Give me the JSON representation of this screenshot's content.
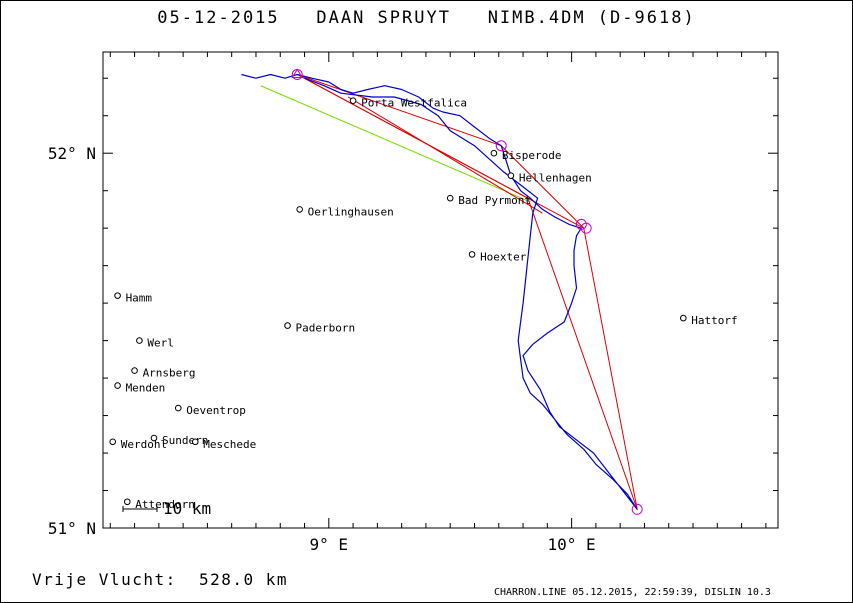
{
  "title": {
    "date": "05-12-2015",
    "pilot": "DAAN SPRUYT",
    "glider": "NIMB.4DM (D-9618)"
  },
  "axes": {
    "lon_ticks": [
      {
        "lon": 9.0,
        "label": "9° E"
      },
      {
        "lon": 10.0,
        "label": "10° E"
      }
    ],
    "lat_ticks": [
      {
        "lat": 52.0,
        "label": "52° N"
      },
      {
        "lat": 51.0,
        "label": "51° N"
      }
    ],
    "lon_range": [
      8.07,
      10.85
    ],
    "lat_range": [
      51.0,
      52.27
    ]
  },
  "scale_bar": {
    "label": "10 km"
  },
  "places": [
    {
      "name": "Porta Westfalica",
      "lon": 9.1,
      "lat": 52.14
    },
    {
      "name": "Bisperode",
      "lon": 9.68,
      "lat": 52.0
    },
    {
      "name": "Hellenhagen",
      "lon": 9.75,
      "lat": 51.94
    },
    {
      "name": "Bad Pyrmont",
      "lon": 9.5,
      "lat": 51.88
    },
    {
      "name": "Oerlinghausen",
      "lon": 8.88,
      "lat": 51.85
    },
    {
      "name": "Hoexter",
      "lon": 9.59,
      "lat": 51.73
    },
    {
      "name": "Hamm",
      "lon": 8.13,
      "lat": 51.62
    },
    {
      "name": "Hattorf",
      "lon": 10.46,
      "lat": 51.56
    },
    {
      "name": "Paderborn",
      "lon": 8.83,
      "lat": 51.54
    },
    {
      "name": "Werl",
      "lon": 8.22,
      "lat": 51.5
    },
    {
      "name": "Arnsberg",
      "lon": 8.2,
      "lat": 51.42
    },
    {
      "name": "Menden",
      "lon": 8.13,
      "lat": 51.38
    },
    {
      "name": "Oeventrop",
      "lon": 8.38,
      "lat": 51.32
    },
    {
      "name": "Werdohl",
      "lon": 8.11,
      "lat": 51.23
    },
    {
      "name": "Sundern",
      "lon": 8.28,
      "lat": 51.24
    },
    {
      "name": "Meschede",
      "lon": 8.45,
      "lat": 51.23
    },
    {
      "name": "Attendorn",
      "lon": 8.17,
      "lat": 51.07
    }
  ],
  "turnpoints": [
    {
      "lon": 8.87,
      "lat": 52.21
    },
    {
      "lon": 9.71,
      "lat": 52.02
    },
    {
      "lon": 10.04,
      "lat": 51.81
    },
    {
      "lon": 10.06,
      "lat": 51.8
    },
    {
      "lon": 10.27,
      "lat": 51.05
    }
  ],
  "track": [
    [
      8.64,
      52.21
    ],
    [
      8.7,
      52.2
    ],
    [
      8.76,
      52.21
    ],
    [
      8.82,
      52.2
    ],
    [
      8.87,
      52.21
    ],
    [
      8.93,
      52.2
    ],
    [
      9.0,
      52.19
    ],
    [
      9.05,
      52.17
    ],
    [
      9.1,
      52.16
    ],
    [
      9.16,
      52.17
    ],
    [
      9.23,
      52.18
    ],
    [
      9.3,
      52.17
    ],
    [
      9.37,
      52.15
    ],
    [
      9.43,
      52.12
    ],
    [
      9.47,
      52.11
    ],
    [
      9.54,
      52.1
    ],
    [
      9.6,
      52.07
    ],
    [
      9.66,
      52.04
    ],
    [
      9.71,
      52.02
    ],
    [
      9.73,
      51.98
    ],
    [
      9.75,
      51.94
    ],
    [
      9.79,
      51.9
    ],
    [
      9.83,
      51.88
    ],
    [
      9.88,
      51.85
    ],
    [
      9.93,
      51.83
    ],
    [
      9.99,
      51.81
    ],
    [
      10.04,
      51.8
    ],
    [
      10.02,
      51.78
    ],
    [
      10.01,
      51.74
    ],
    [
      10.01,
      51.7
    ],
    [
      10.02,
      51.64
    ],
    [
      10.0,
      51.6
    ],
    [
      9.97,
      51.55
    ],
    [
      9.9,
      51.52
    ],
    [
      9.84,
      51.49
    ],
    [
      9.8,
      51.46
    ],
    [
      9.82,
      51.42
    ],
    [
      9.87,
      51.37
    ],
    [
      9.91,
      51.31
    ],
    [
      9.95,
      51.27
    ],
    [
      10.03,
      51.23
    ],
    [
      10.09,
      51.2
    ],
    [
      10.15,
      51.15
    ],
    [
      10.21,
      51.1
    ],
    [
      10.27,
      51.05
    ],
    [
      10.23,
      51.09
    ],
    [
      10.17,
      51.13
    ],
    [
      10.1,
      51.17
    ],
    [
      10.05,
      51.21
    ],
    [
      9.98,
      51.25
    ],
    [
      9.93,
      51.29
    ],
    [
      9.88,
      51.33
    ],
    [
      9.83,
      51.36
    ],
    [
      9.8,
      51.4
    ],
    [
      9.79,
      51.45
    ],
    [
      9.78,
      51.5
    ],
    [
      9.79,
      51.55
    ],
    [
      9.8,
      51.6
    ],
    [
      9.81,
      51.66
    ],
    [
      9.82,
      51.72
    ],
    [
      9.83,
      51.78
    ],
    [
      9.84,
      51.84
    ],
    [
      9.86,
      51.88
    ],
    [
      9.8,
      51.91
    ],
    [
      9.72,
      51.95
    ],
    [
      9.6,
      52.02
    ],
    [
      9.5,
      52.06
    ],
    [
      9.45,
      52.1
    ],
    [
      9.38,
      52.13
    ],
    [
      9.27,
      52.15
    ],
    [
      9.18,
      52.15
    ],
    [
      9.05,
      52.16
    ],
    [
      8.98,
      52.18
    ],
    [
      8.9,
      52.2
    ]
  ],
  "task_legs": [
    [
      [
        8.87,
        52.21
      ],
      [
        9.71,
        52.02
      ]
    ],
    [
      [
        9.71,
        52.02
      ],
      [
        10.05,
        51.8
      ]
    ],
    [
      [
        10.05,
        51.8
      ],
      [
        10.27,
        51.05
      ]
    ],
    [
      [
        10.27,
        51.05
      ],
      [
        9.82,
        51.88
      ]
    ],
    [
      [
        9.82,
        51.88
      ],
      [
        8.87,
        52.21
      ]
    ],
    [
      [
        8.87,
        52.21
      ],
      [
        10.05,
        51.8
      ]
    ],
    [
      [
        9.08,
        52.15
      ],
      [
        9.88,
        51.84
      ]
    ]
  ],
  "closing_line": [
    [
      8.72,
      52.18
    ],
    [
      9.83,
      51.87
    ]
  ],
  "colors": {
    "track": "#0000cc",
    "task": "#dd0000",
    "closing": "#77dd00",
    "turnpoint": "#cc00cc",
    "start": "#00bbbb"
  },
  "footer": {
    "distance_label": "Vrije Vlucht:",
    "distance_value": "528.0 km",
    "credits": "CHARRON.LINE 05.12.2015, 22:59:39, DISLIN 10.3"
  }
}
